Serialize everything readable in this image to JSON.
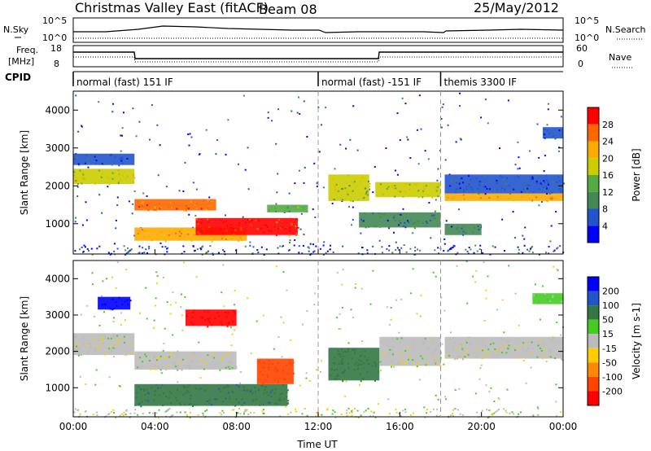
{
  "header": {
    "title": "Christmas Valley East (fitACF)",
    "beam": "Beam 08",
    "date": "25/May/2012"
  },
  "left_labels": {
    "nsky": "N.Sky",
    "freq": "Freq.",
    "freq_unit": "[MHz]",
    "cpid": "CPID"
  },
  "right_labels": {
    "nsearch": "N.Search",
    "nave": "Nave"
  },
  "strip_ticks": {
    "noise_left": [
      "10^5",
      "10^0"
    ],
    "noise_right": [
      "10^5",
      "10^0"
    ],
    "freq_left": [
      "18",
      "8"
    ],
    "freq_right": [
      "60",
      "0"
    ]
  },
  "cpid_segments": [
    {
      "label": "normal (fast) 151 IF",
      "start": 0,
      "end": 12
    },
    {
      "label": "normal (fast) -151 IF",
      "start": 12,
      "end": 18
    },
    {
      "label": "themis 3300 IF",
      "start": 18,
      "end": 24
    }
  ],
  "colors": {
    "power": [
      "#0000ff",
      "#2255cc",
      "#448855",
      "#55aa44",
      "#cccc00",
      "#ffaa00",
      "#ff6600",
      "#ff0000"
    ],
    "velocity": [
      "#0000ff",
      "#2255cc",
      "#337744",
      "#44cc22",
      "#bbbbbb",
      "#ffcc00",
      "#ff8800",
      "#ff4400",
      "#ff0000"
    ]
  },
  "chart_data": [
    {
      "type": "heatmap",
      "title": "",
      "ylabel": "Slant Range [km]",
      "xlabel": "Time UT",
      "x_ticks": [
        "00:00",
        "04:00",
        "08:00",
        "12:00",
        "16:00",
        "20:00",
        "00:00"
      ],
      "y_ticks": [
        "1000",
        "2000",
        "3000",
        "4000"
      ],
      "xlim": [
        0,
        24
      ],
      "ylim": [
        200,
        4500
      ],
      "colorbar_label": "Power [dB]",
      "colorbar_ticks": [
        "4",
        "8",
        "12",
        "16",
        "20",
        "24",
        "28"
      ],
      "colorbar_range": [
        0,
        30
      ],
      "bands": [
        {
          "t0": 0.0,
          "t1": 3.0,
          "r0": 2050,
          "r1": 2450,
          "value": 18
        },
        {
          "t0": 0.0,
          "t1": 3.0,
          "r0": 2550,
          "r1": 2850,
          "value": 6
        },
        {
          "t0": 3.0,
          "t1": 7.0,
          "r0": 1350,
          "r1": 1650,
          "value": 24
        },
        {
          "t0": 3.0,
          "t1": 8.5,
          "r0": 550,
          "r1": 900,
          "value": 22
        },
        {
          "t0": 6.0,
          "t1": 11.0,
          "r0": 700,
          "r1": 1150,
          "value": 28
        },
        {
          "t0": 9.5,
          "t1": 11.5,
          "r0": 1300,
          "r1": 1500,
          "value": 12
        },
        {
          "t0": 12.5,
          "t1": 14.5,
          "r0": 1600,
          "r1": 2300,
          "value": 16
        },
        {
          "t0": 14.8,
          "t1": 18.0,
          "r0": 1700,
          "r1": 2100,
          "value": 18
        },
        {
          "t0": 14.0,
          "t1": 18.0,
          "r0": 900,
          "r1": 1300,
          "value": 8
        },
        {
          "t0": 18.2,
          "t1": 24.0,
          "r0": 1600,
          "r1": 1800,
          "value": 22
        },
        {
          "t0": 18.2,
          "t1": 24.0,
          "r0": 1800,
          "r1": 2300,
          "value": 6
        },
        {
          "t0": 18.2,
          "t1": 20.0,
          "r0": 700,
          "r1": 1000,
          "value": 8
        },
        {
          "t0": 23.0,
          "t1": 24.0,
          "r0": 3250,
          "r1": 3550,
          "value": 4
        }
      ]
    },
    {
      "type": "heatmap",
      "title": "",
      "ylabel": "Slant Range [km]",
      "xlabel": "Time UT",
      "x_ticks": [
        "00:00",
        "04:00",
        "08:00",
        "12:00",
        "16:00",
        "20:00",
        "00:00"
      ],
      "y_ticks": [
        "1000",
        "2000",
        "3000",
        "4000"
      ],
      "xlim": [
        0,
        24
      ],
      "ylim": [
        200,
        4500
      ],
      "colorbar_label": "Velocity [m s-1]",
      "colorbar_ticks": [
        "200",
        "100",
        "50",
        "15",
        "-15",
        "-50",
        "-100",
        "-200"
      ],
      "bands": [
        {
          "t0": 0.0,
          "t1": 3.0,
          "r0": 1900,
          "r1": 2500,
          "value": 0
        },
        {
          "t0": 1.2,
          "t1": 2.8,
          "r0": 3150,
          "r1": 3500,
          "value": 180
        },
        {
          "t0": 5.5,
          "t1": 8.0,
          "r0": 2700,
          "r1": 3150,
          "value": -200
        },
        {
          "t0": 3.0,
          "t1": 8.0,
          "r0": 1500,
          "r1": 2000,
          "value": 0
        },
        {
          "t0": 3.0,
          "t1": 10.5,
          "r0": 500,
          "r1": 1100,
          "value": 60
        },
        {
          "t0": 9.0,
          "t1": 10.8,
          "r0": 1100,
          "r1": 1800,
          "value": -120
        },
        {
          "t0": 12.5,
          "t1": 15.0,
          "r0": 1200,
          "r1": 2100,
          "value": 50
        },
        {
          "t0": 15.0,
          "t1": 18.0,
          "r0": 1600,
          "r1": 2400,
          "value": 0
        },
        {
          "t0": 18.2,
          "t1": 24.0,
          "r0": 1800,
          "r1": 2400,
          "value": 0
        },
        {
          "t0": 22.5,
          "t1": 24.0,
          "r0": 3300,
          "r1": 3600,
          "value": 10
        }
      ]
    }
  ]
}
